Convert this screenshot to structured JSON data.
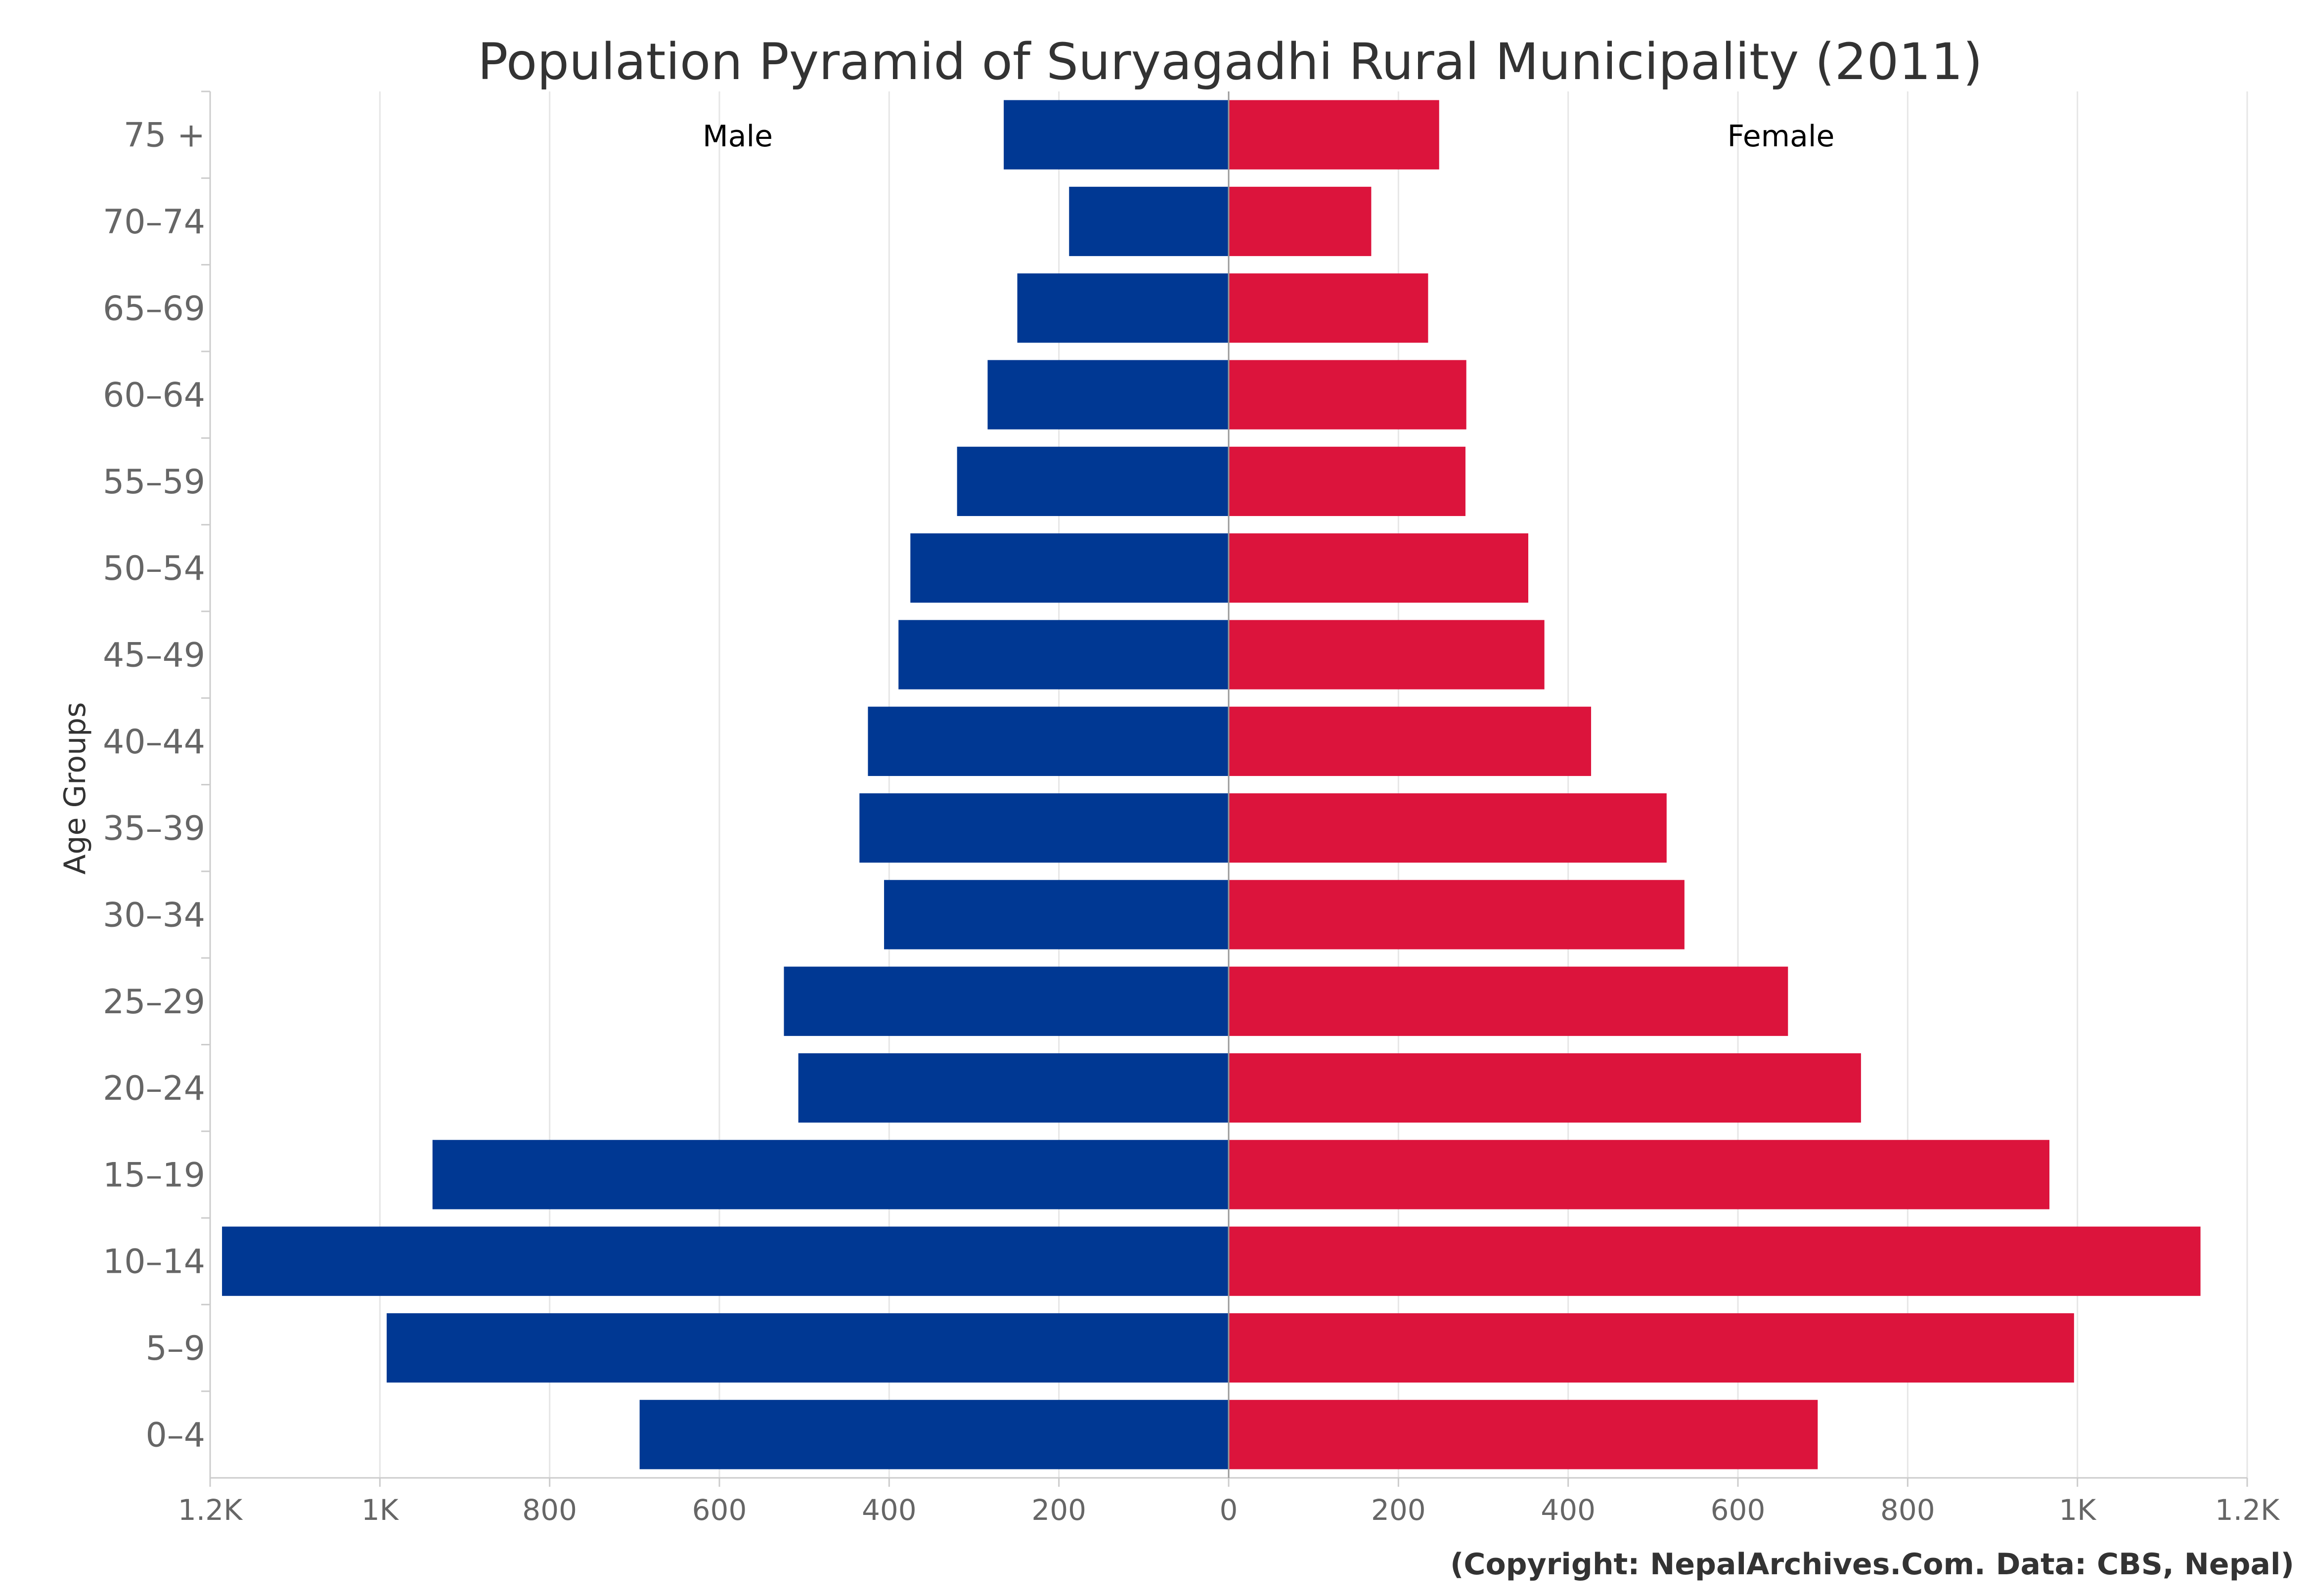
{
  "chart_data": {
    "type": "bar",
    "orientation": "horizontal-pyramid",
    "title": "Population Pyramid of Suryagadhi Rural Municipality (2011)",
    "ylabel": "Age Groups",
    "xlabel": "",
    "categories": [
      "0–4",
      "5–9",
      "10–14",
      "15–19",
      "20–24",
      "25–29",
      "30–34",
      "35–39",
      "40–44",
      "45–49",
      "50–54",
      "55–59",
      "60–64",
      "65–69",
      "70–74",
      "75 +"
    ],
    "series": [
      {
        "name": "Male",
        "color": "#003893",
        "values": [
          694,
          992,
          1186,
          938,
          507,
          524,
          406,
          435,
          425,
          389,
          375,
          320,
          284,
          249,
          188,
          265
        ]
      },
      {
        "name": "Female",
        "color": "#DC143C",
        "values": [
          694,
          996,
          1145,
          967,
          745,
          659,
          537,
          516,
          427,
          372,
          353,
          279,
          280,
          235,
          168,
          248
        ]
      }
    ],
    "xlim": [
      -1200,
      1200
    ],
    "x_ticks": [
      -1200,
      -1000,
      -800,
      -600,
      -400,
      -200,
      0,
      200,
      400,
      600,
      800,
      1000,
      1200
    ],
    "x_tick_labels": [
      "1.2K",
      "1K",
      "800",
      "600",
      "400",
      "200",
      "0",
      "200",
      "400",
      "600",
      "800",
      "1K",
      "1.2K"
    ],
    "grid": true,
    "legend": "none; series names shown inside plot at top-left and top-right",
    "credit": "(Copyright: NepalArchives.Com. Data: CBS, Nepal)"
  }
}
